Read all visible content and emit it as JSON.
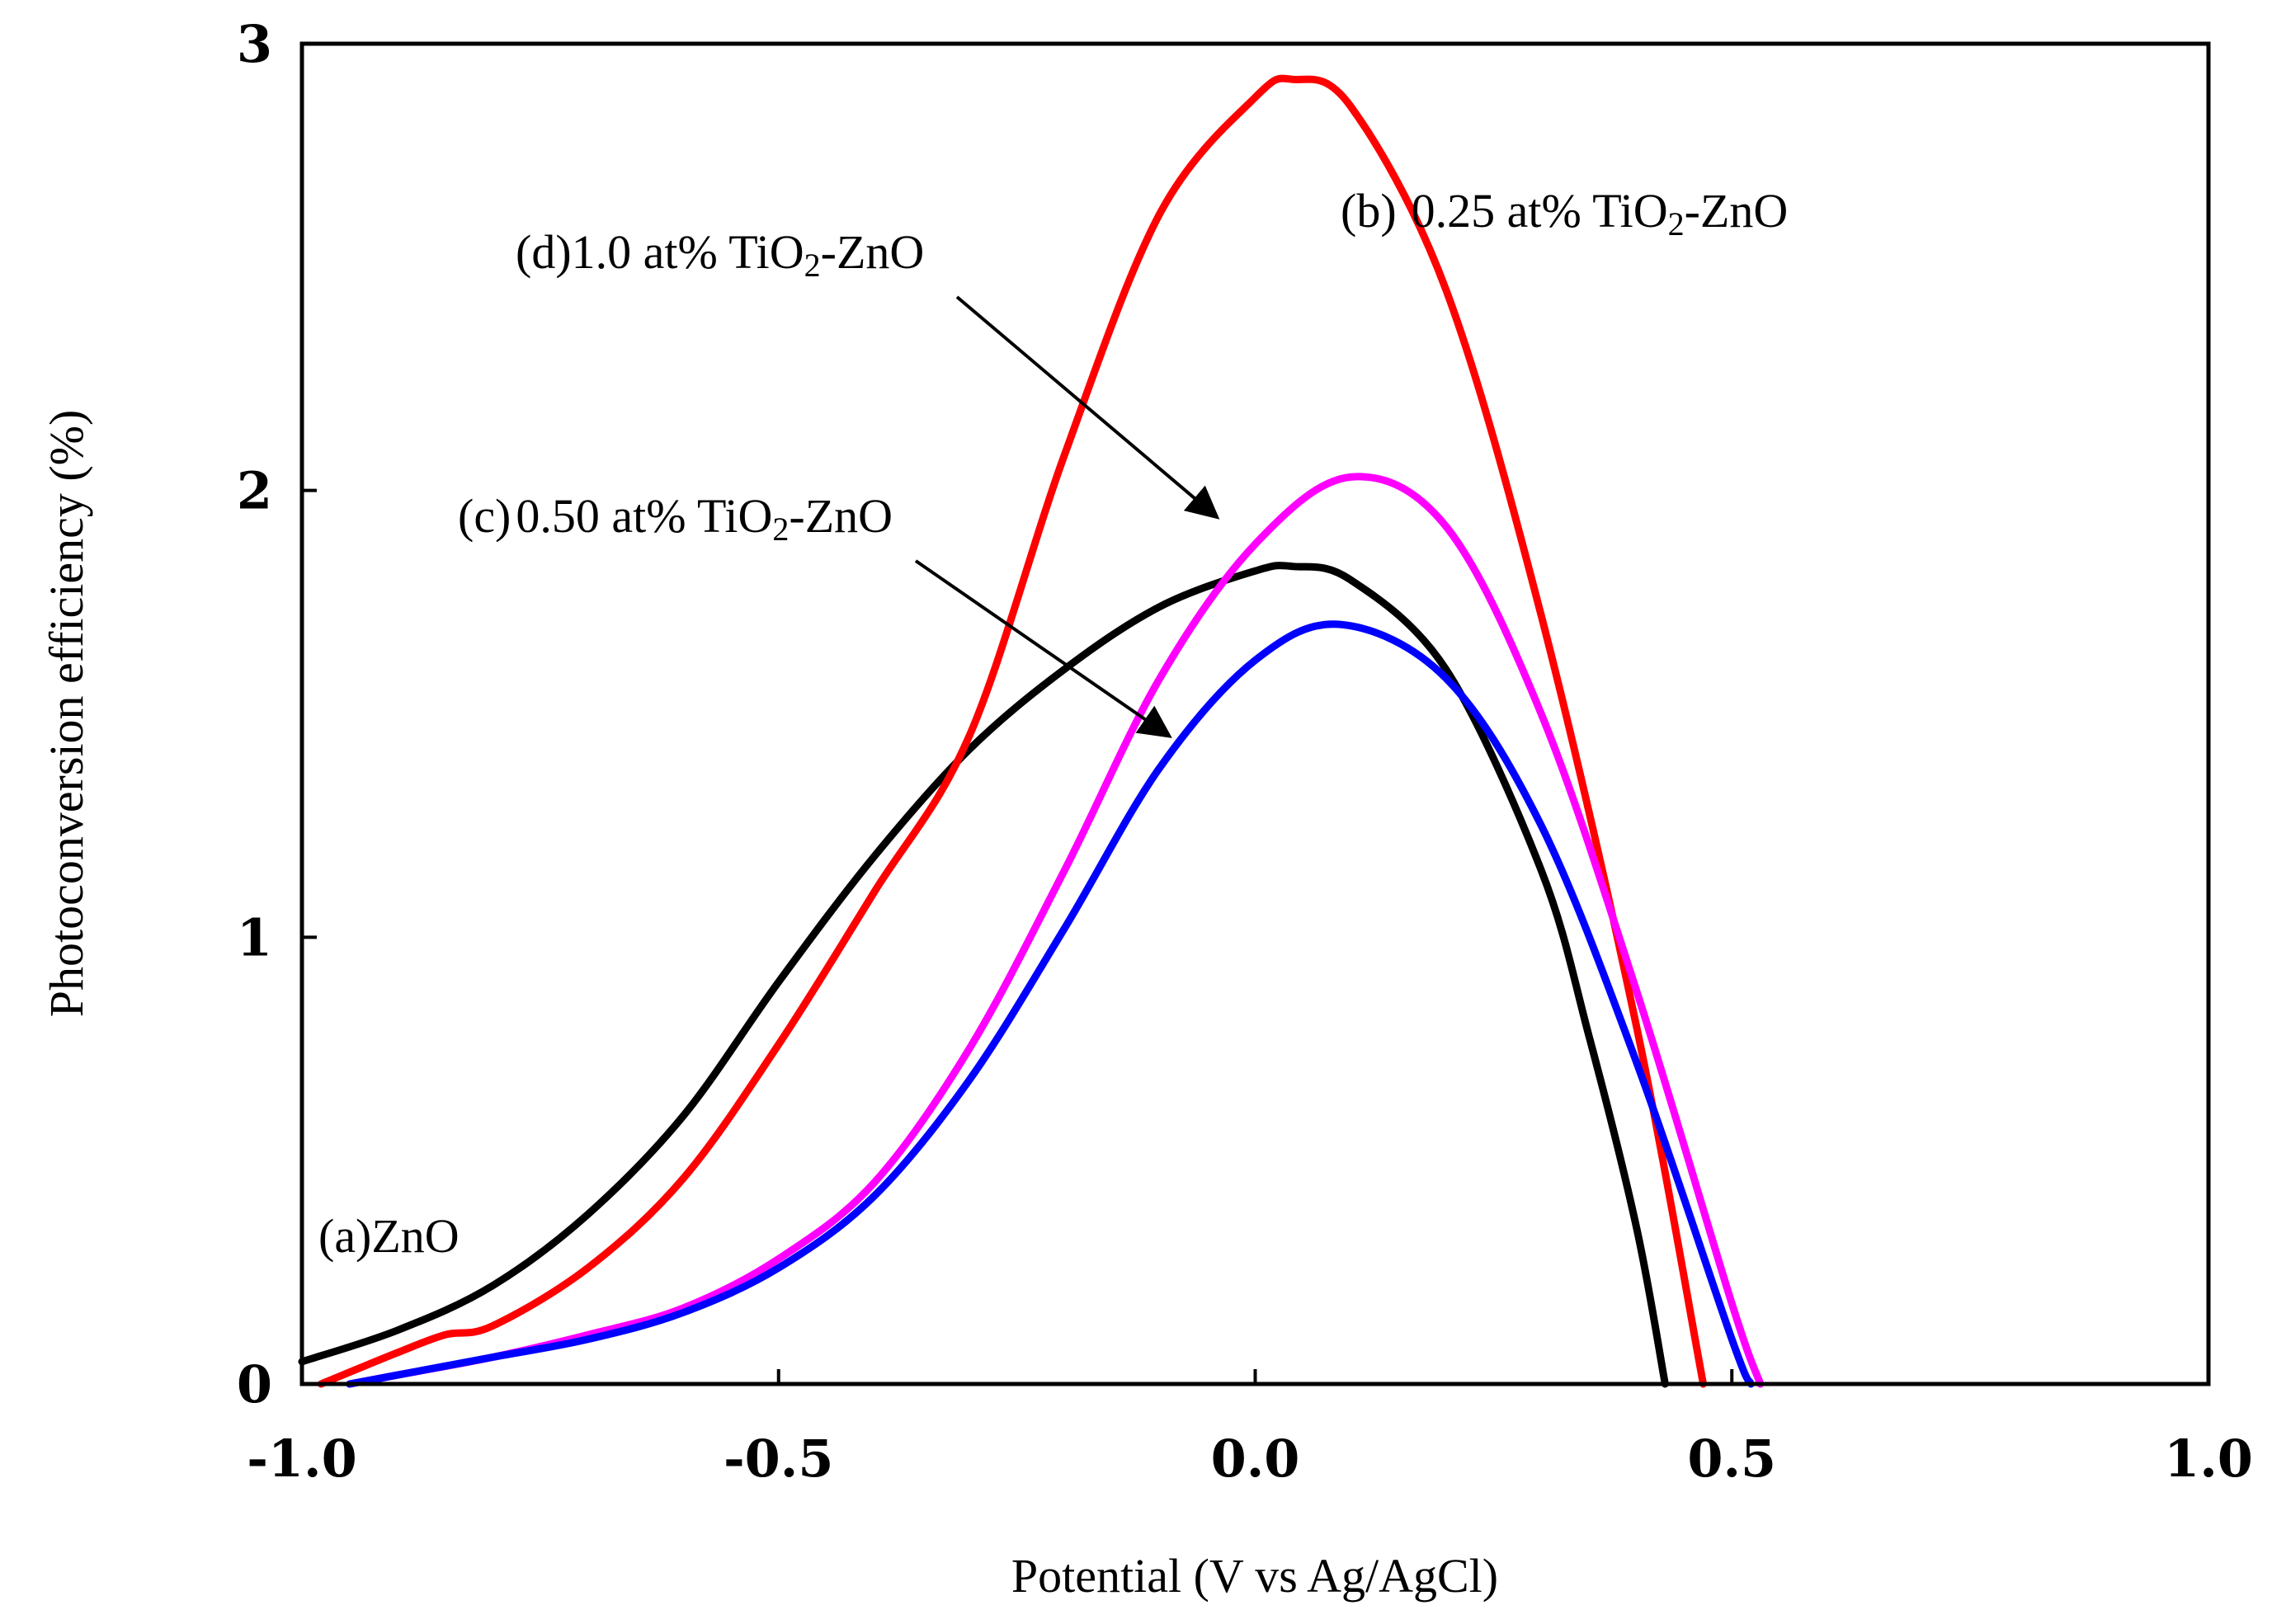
{
  "chart_data": {
    "type": "line",
    "title": "",
    "xlabel": "Potential (V vs Ag/AgCl)",
    "ylabel": "Photoconversion efficiency (%)",
    "xlim": [
      -1.0,
      1.0
    ],
    "ylim": [
      0,
      3
    ],
    "xticks": [
      -1.0,
      -0.5,
      0.0,
      0.5,
      1.0
    ],
    "xtick_labels": [
      "-1.0",
      "-0.5",
      "0.0",
      "0.5",
      "1.0"
    ],
    "yticks": [
      0,
      1,
      2,
      3
    ],
    "ytick_labels": [
      "0",
      "1",
      "2",
      "3"
    ],
    "grid": false,
    "series": [
      {
        "name": "(a) ZnO",
        "color": "#000000",
        "x": [
          -1.0,
          -0.9,
          -0.8,
          -0.7,
          -0.6,
          -0.5,
          -0.4,
          -0.3,
          -0.2,
          -0.1,
          0.0,
          0.04,
          0.1,
          0.2,
          0.3,
          0.35,
          0.4,
          0.43
        ],
        "y": [
          0.05,
          0.12,
          0.22,
          0.38,
          0.6,
          0.9,
          1.18,
          1.42,
          1.6,
          1.74,
          1.82,
          1.83,
          1.8,
          1.6,
          1.15,
          0.78,
          0.35,
          0.0
        ]
      },
      {
        "name": "(b) 0.25 at% TiO2-ZnO",
        "color": "#ff0000",
        "x": [
          -0.98,
          -0.9,
          -0.85,
          -0.8,
          -0.7,
          -0.6,
          -0.5,
          -0.4,
          -0.3,
          -0.2,
          -0.1,
          0.0,
          0.04,
          0.1,
          0.2,
          0.3,
          0.4,
          0.47
        ],
        "y": [
          0.0,
          0.07,
          0.11,
          0.13,
          0.26,
          0.46,
          0.76,
          1.1,
          1.45,
          2.08,
          2.62,
          2.88,
          2.92,
          2.86,
          2.45,
          1.72,
          0.8,
          0.0
        ]
      },
      {
        "name": "(c) 0.50 at% TiO2-ZnO",
        "color": "#0000ff",
        "x": [
          -0.95,
          -0.9,
          -0.8,
          -0.7,
          -0.6,
          -0.5,
          -0.4,
          -0.3,
          -0.2,
          -0.1,
          0.0,
          0.09,
          0.2,
          0.3,
          0.4,
          0.5,
          0.52
        ],
        "y": [
          0.0,
          0.02,
          0.06,
          0.1,
          0.16,
          0.26,
          0.42,
          0.68,
          1.02,
          1.38,
          1.62,
          1.7,
          1.58,
          1.25,
          0.72,
          0.1,
          0.0
        ]
      },
      {
        "name": "(d) 1.0 at% TiO2-ZnO",
        "color": "#ff00ff",
        "x": [
          -0.95,
          -0.9,
          -0.8,
          -0.7,
          -0.6,
          -0.5,
          -0.4,
          -0.3,
          -0.2,
          -0.1,
          0.0,
          0.1,
          0.2,
          0.3,
          0.4,
          0.5,
          0.53
        ],
        "y": [
          0.0,
          0.02,
          0.06,
          0.11,
          0.17,
          0.28,
          0.45,
          0.75,
          1.15,
          1.58,
          1.88,
          2.03,
          1.92,
          1.5,
          0.88,
          0.18,
          0.0
        ]
      }
    ],
    "annotations": [
      {
        "id": "a",
        "prefix": "(a)",
        "text": "ZnO",
        "sub": "",
        "tail": ""
      },
      {
        "id": "b",
        "prefix": "(b)",
        "text": "0.25 at% TiO",
        "sub": "2",
        "tail": "-ZnO"
      },
      {
        "id": "c",
        "prefix": "(c)",
        "text": "0.50 at% TiO",
        "sub": "2",
        "tail": "-ZnO",
        "arrow_to": {
          "x": -0.09,
          "y": 1.45
        }
      },
      {
        "id": "d",
        "prefix": "(d)",
        "text": "1.0 at% TiO",
        "sub": "2",
        "tail": "-ZnO",
        "arrow_to": {
          "x": -0.04,
          "y": 1.94
        }
      }
    ]
  }
}
